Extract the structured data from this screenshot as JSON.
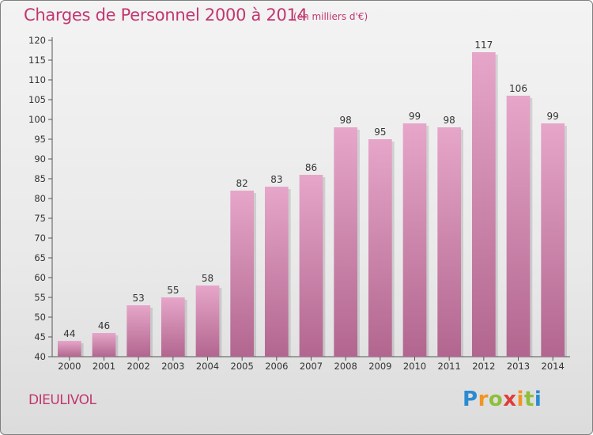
{
  "header": {
    "title": "Charges de Personnel 2000 à 2014",
    "subtitle": "(en milliers d'€)"
  },
  "footer": {
    "commune": "DIEULIVOL",
    "logo_text": "Proxiti"
  },
  "colors": {
    "bar_top": "#e6a6c9",
    "bar_bottom": "#b2668f",
    "accent": "#c2366f"
  },
  "chart_data": {
    "type": "bar",
    "categories": [
      "2000",
      "2001",
      "2002",
      "2003",
      "2004",
      "2005",
      "2006",
      "2007",
      "2008",
      "2009",
      "2010",
      "2011",
      "2012",
      "2013",
      "2014"
    ],
    "values": [
      44,
      46,
      53,
      55,
      58,
      82,
      83,
      86,
      98,
      95,
      99,
      98,
      117,
      106,
      99
    ],
    "title": "Charges de Personnel 2000 à 2014",
    "subtitle": "(en milliers d'€)",
    "xlabel": "",
    "ylabel": "",
    "ylim": [
      40,
      120
    ],
    "ytick_step": 5,
    "grid": false,
    "data_labels": true
  }
}
